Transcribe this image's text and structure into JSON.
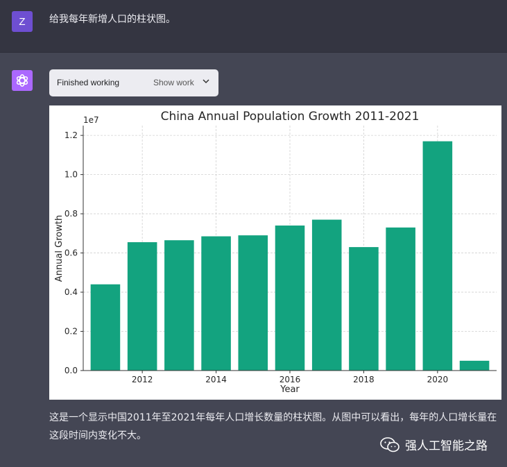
{
  "user": {
    "avatar_letter": "Z",
    "message": "给我每年新增人口的柱状图。"
  },
  "assistant": {
    "status_label": "Finished working",
    "show_work_label": "Show work",
    "reply": "这是一个显示中国2011年至2021年每年人口增长数量的柱状图。从图中可以看出，每年的人口增长量在这段时间内变化不大。"
  },
  "watermark": {
    "label": "强人工智能之路"
  },
  "colors": {
    "bar": "#13a37f",
    "user_bg": "#343541",
    "assistant_bg": "#444654",
    "brand": "#ab68ff"
  },
  "chart_data": {
    "type": "bar",
    "title": "China Annual Population Growth 2011-2021",
    "xlabel": "Year",
    "ylabel": "Annual Growth",
    "scale_label": "1e7",
    "categories": [
      2011,
      2012,
      2013,
      2014,
      2015,
      2016,
      2017,
      2018,
      2019,
      2020,
      2021
    ],
    "values": [
      4400000,
      6550000,
      6650000,
      6850000,
      6900000,
      7400000,
      7700000,
      6300000,
      7300000,
      11700000,
      500000
    ],
    "ylim": [
      0,
      12500000
    ],
    "yticks": [
      0,
      2000000,
      4000000,
      6000000,
      8000000,
      10000000,
      12000000
    ],
    "ytick_labels": [
      "0.0",
      "0.2",
      "0.4",
      "0.6",
      "0.8",
      "1.0",
      "1.2"
    ],
    "xticks": [
      2012,
      2014,
      2016,
      2018,
      2020
    ],
    "grid": true
  }
}
